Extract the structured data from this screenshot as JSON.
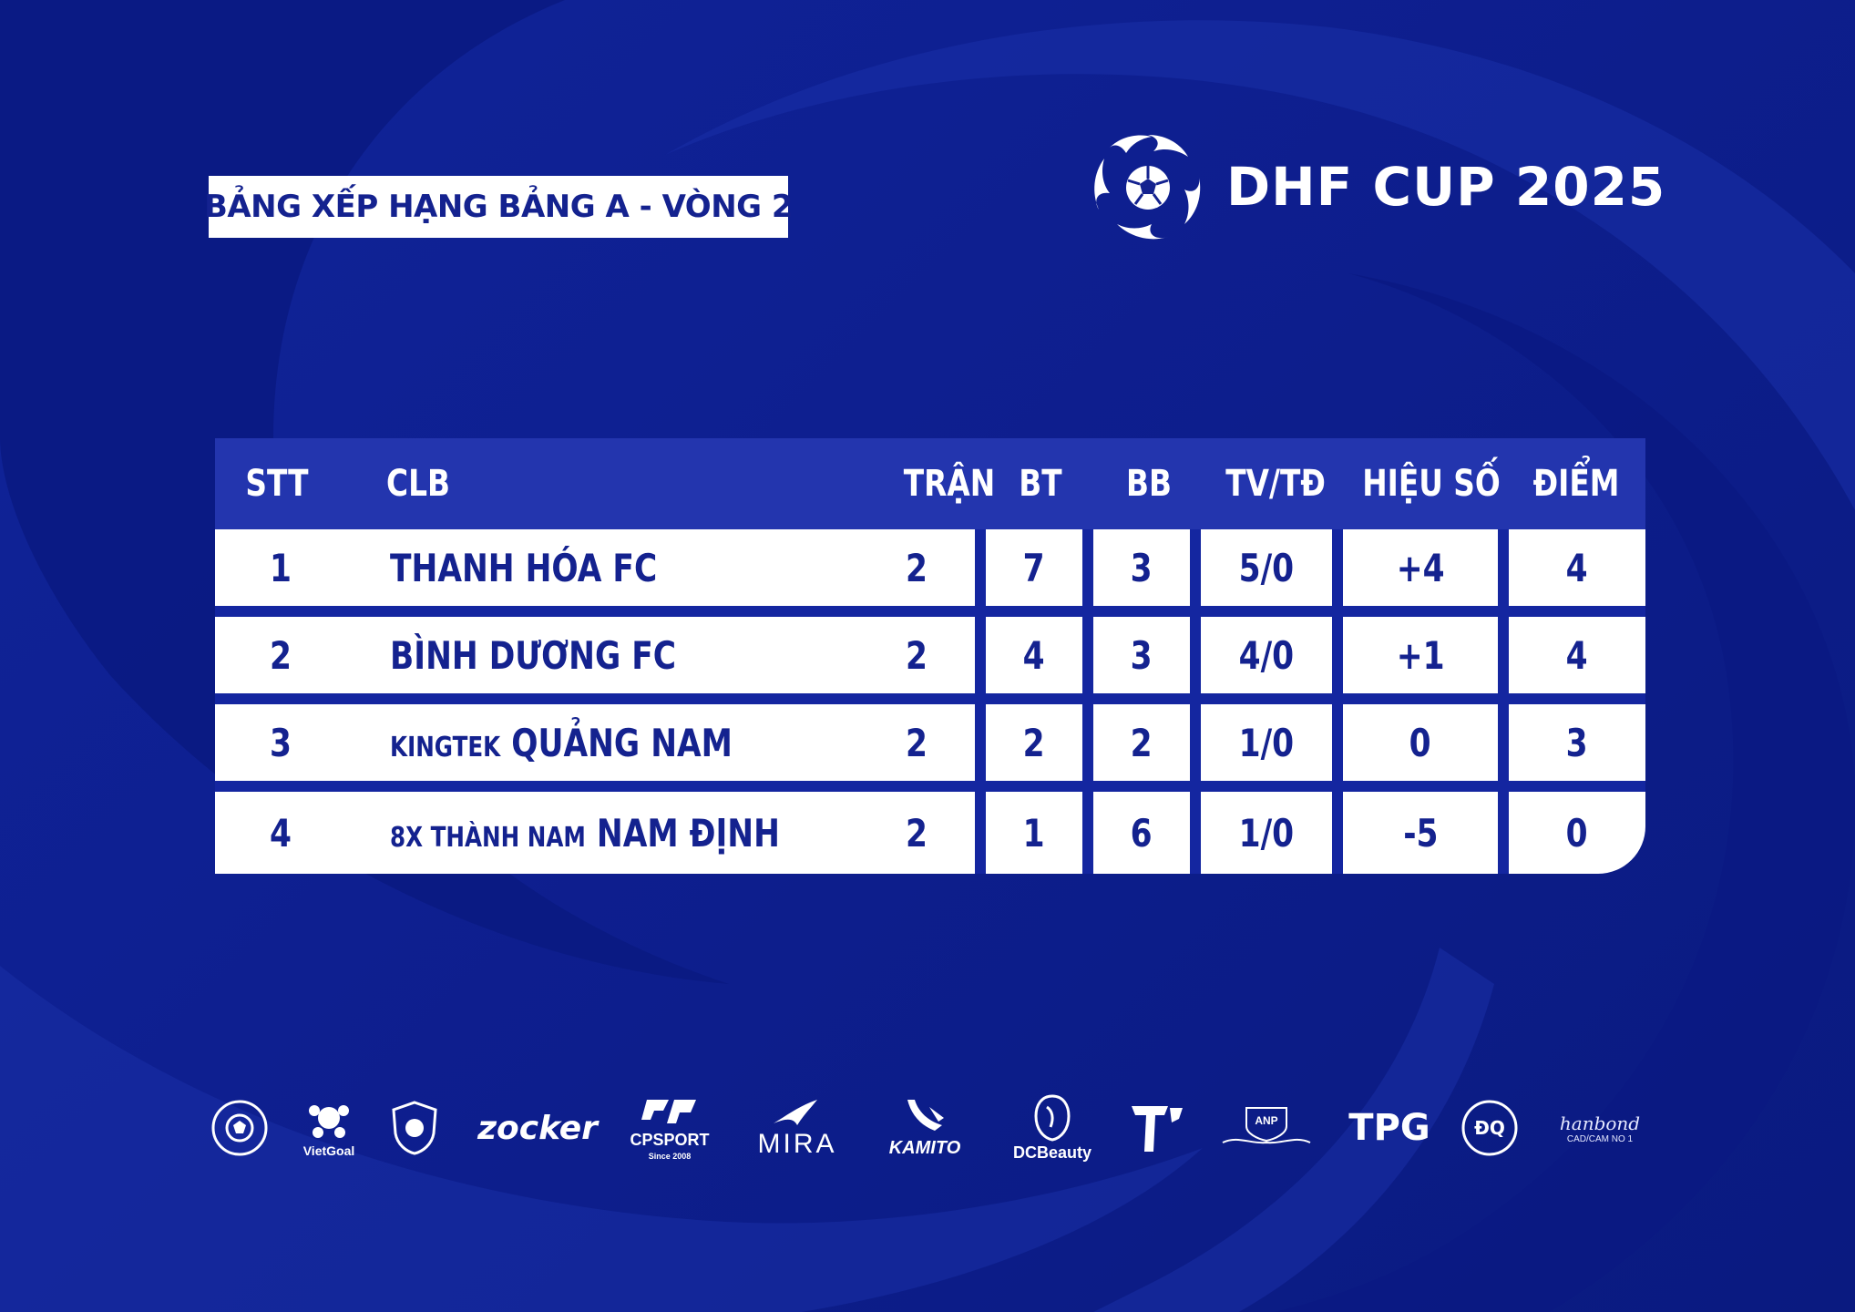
{
  "title_badge": {
    "text": "BẢNG XẾP HẠNG BẢNG A - VÒNG 2"
  },
  "brand": {
    "name": "DHF CUP 2025",
    "logo_icon": "swirl-soccer-ball-icon"
  },
  "standings": {
    "columns": [
      "STT",
      "CLB",
      "TRẬN",
      "BT",
      "BB",
      "TV/TĐ",
      "HIỆU SỐ",
      "ĐIỂM"
    ],
    "rows": [
      {
        "stt": "1",
        "club_prefix": "",
        "club_name": "THANH HÓA FC",
        "matches": "2",
        "bt": "7",
        "bb": "3",
        "tv_td": "5/0",
        "goal_diff": "+4",
        "points": "4"
      },
      {
        "stt": "2",
        "club_prefix": "",
        "club_name": "BÌNH DƯƠNG FC",
        "matches": "2",
        "bt": "4",
        "bb": "3",
        "tv_td": "4/0",
        "goal_diff": "+1",
        "points": "4"
      },
      {
        "stt": "3",
        "club_prefix": "KINGTEK",
        "club_name": "QUẢNG NAM",
        "matches": "2",
        "bt": "2",
        "bb": "2",
        "tv_td": "1/0",
        "goal_diff": "0",
        "points": "3"
      },
      {
        "stt": "4",
        "club_prefix": "8X THÀNH NAM",
        "club_name": "NAM ĐỊNH",
        "matches": "2",
        "bt": "1",
        "bb": "6",
        "tv_td": "1/0",
        "goal_diff": "-5",
        "points": "0"
      }
    ]
  },
  "sponsors": [
    {
      "icon": "phu-football-badge-icon",
      "text": ""
    },
    {
      "icon": "vietgoal-logo-icon",
      "text": "VietGoal"
    },
    {
      "icon": "club-shield-icon",
      "text": ""
    },
    {
      "icon": "zocker-logo-icon",
      "text": "zocker"
    },
    {
      "icon": "cpsport-logo-icon",
      "text": "CPSPORT",
      "sub": "Since 2008"
    },
    {
      "icon": "mira-logo-icon",
      "text": "MIRA"
    },
    {
      "icon": "kamito-logo-icon",
      "text": "KAMITO"
    },
    {
      "icon": "dcbeauty-logo-icon",
      "text": "DCBeauty"
    },
    {
      "icon": "td-logo-icon",
      "text": ""
    },
    {
      "icon": "anp-logo-icon",
      "text": "ANP"
    },
    {
      "icon": "tpg-logo-icon",
      "text": "TPG"
    },
    {
      "icon": "dinh-quang-logo-icon",
      "text": "ĐQ"
    },
    {
      "icon": "hanbond-logo-icon",
      "text": "hanbond",
      "sub": "CAD/CAM NO 1"
    }
  ],
  "colors": {
    "background": "#0d1e8c",
    "header_band": "#2335ae",
    "cell_bg": "#ffffff",
    "cell_text": "#14228f"
  }
}
